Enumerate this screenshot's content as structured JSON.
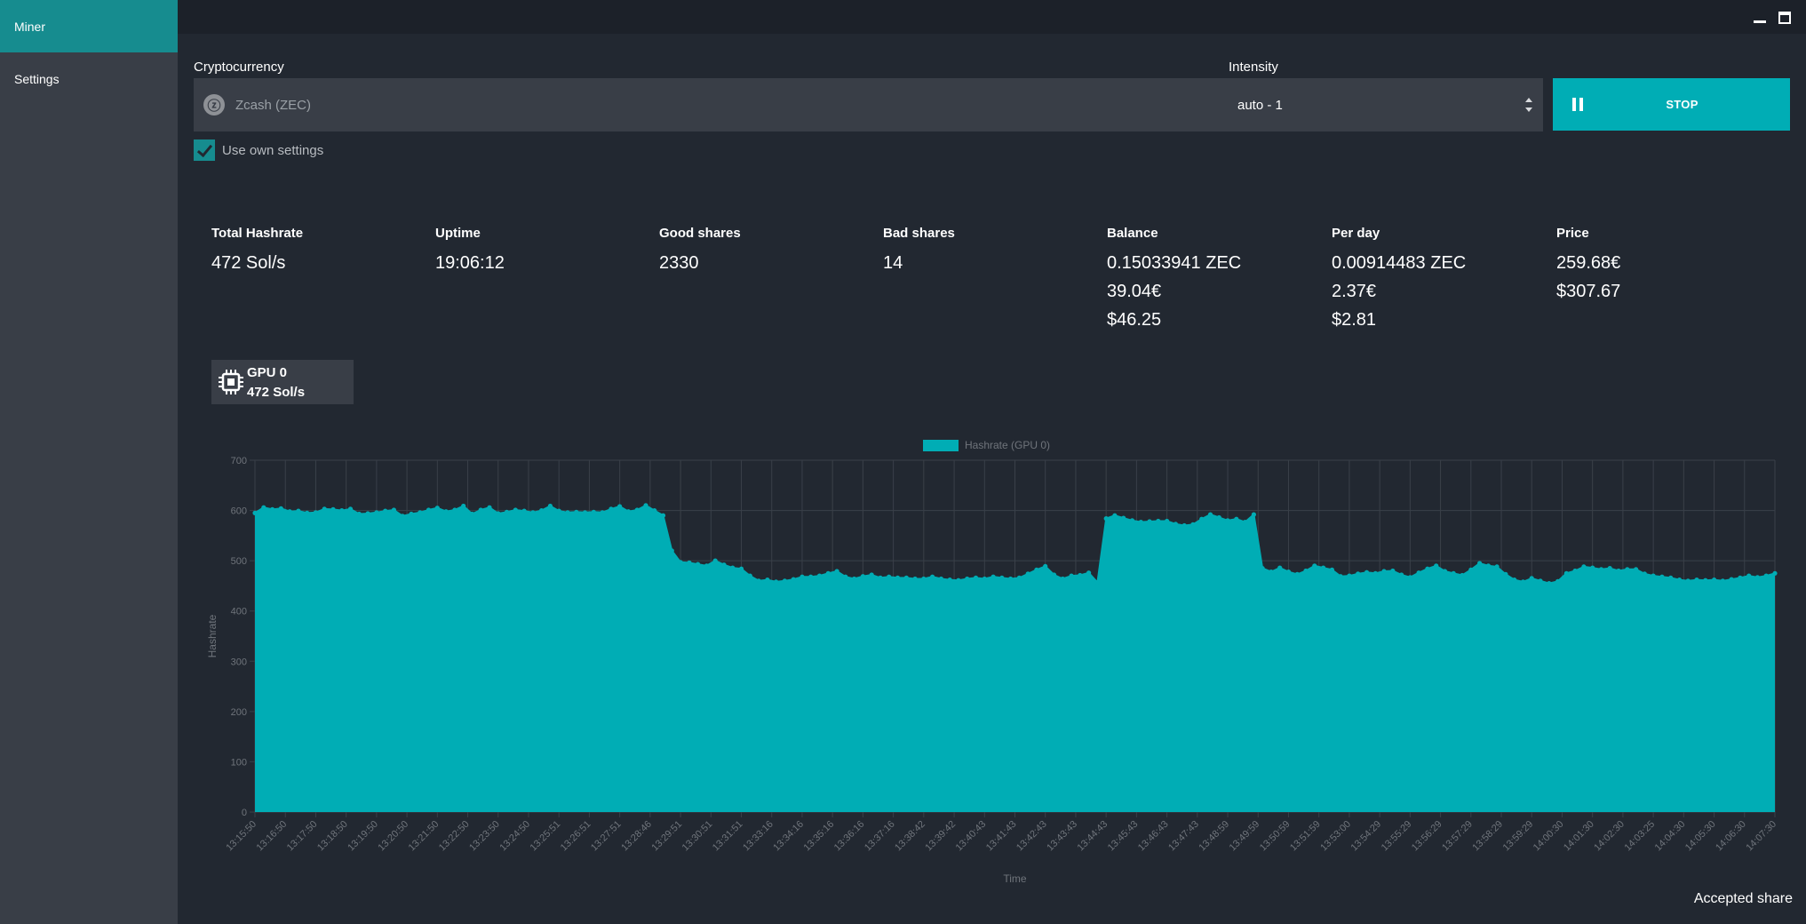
{
  "nav": {
    "items": [
      {
        "label": "Miner",
        "active": true
      },
      {
        "label": "Settings",
        "active": false
      }
    ]
  },
  "controls": {
    "crypto_label": "Cryptocurrency",
    "crypto_value": "Zcash (ZEC)",
    "crypto_icon": "zcash-coin-icon",
    "intensity_label": "Intensity",
    "intensity_value": "auto - 1",
    "stop_label": "STOP",
    "use_own_settings_label": "Use own settings",
    "use_own_settings_checked": true
  },
  "stats": [
    {
      "label": "Total Hashrate",
      "values": [
        "472 Sol/s"
      ]
    },
    {
      "label": "Uptime",
      "values": [
        "19:06:12"
      ]
    },
    {
      "label": "Good shares",
      "values": [
        "2330"
      ]
    },
    {
      "label": "Bad shares",
      "values": [
        "14"
      ]
    },
    {
      "label": "Balance",
      "values": [
        "0.15033941 ZEC",
        "39.04€",
        "$46.25"
      ]
    },
    {
      "label": "Per day",
      "values": [
        "0.00914483 ZEC",
        "2.37€",
        "$2.81"
      ]
    },
    {
      "label": "Price",
      "values": [
        "259.68€",
        "$307.67"
      ]
    }
  ],
  "gpu": {
    "name": "GPU 0",
    "hashrate": "472 Sol/s",
    "icon": "cpu-chip-icon"
  },
  "status_text": "Accepted share",
  "colors": {
    "accent": "#00adb5",
    "active_nav": "#168c8f",
    "background": "#222831",
    "panel": "#393e47"
  },
  "chart_data": {
    "type": "area",
    "legend": [
      "Hashrate (GPU 0)"
    ],
    "legend_position": "top-center",
    "xlabel": "Time",
    "ylabel": "Hashrate",
    "ylim": [
      0,
      700
    ],
    "yticks": [
      0,
      100,
      200,
      300,
      400,
      500,
      600,
      700
    ],
    "grid": true,
    "x_tick_labels": [
      "13:15:50",
      "13:16:50",
      "13:17:50",
      "13:18:50",
      "13:19:50",
      "13:20:50",
      "13:21:50",
      "13:22:50",
      "13:23:50",
      "13:24:50",
      "13:25:51",
      "13:26:51",
      "13:27:51",
      "13:28:46",
      "13:29:51",
      "13:30:51",
      "13:31:51",
      "13:33:16",
      "13:34:16",
      "13:35:16",
      "13:36:16",
      "13:37:16",
      "13:38:42",
      "13:39:42",
      "13:40:43",
      "13:41:43",
      "13:42:43",
      "13:43:43",
      "13:44:43",
      "13:45:43",
      "13:46:43",
      "13:47:43",
      "13:48:59",
      "13:49:59",
      "13:50:59",
      "13:51:59",
      "13:53:00",
      "13:54:29",
      "13:55:29",
      "13:56:29",
      "13:57:29",
      "13:58:29",
      "13:59:29",
      "14:00:30",
      "14:01:30",
      "14:02:30",
      "14:03:25",
      "14:04:30",
      "14:05:30",
      "14:06:30",
      "14:07:30"
    ],
    "series": [
      {
        "name": "Hashrate (GPU 0)",
        "color": "#00adb5",
        "values": [
          595,
          606,
          602,
          604,
          598,
          599,
          595,
          596,
          603,
          602,
          600,
          603,
          593,
          594,
          596,
          599,
          601,
          589,
          593,
          596,
          601,
          605,
          598,
          601,
          609,
          593,
          601,
          606,
          594,
          597,
          601,
          599,
          596,
          600,
          609,
          599,
          596,
          597,
          596,
          597,
          596,
          603,
          608,
          598,
          601,
          610,
          600,
          590,
          520,
          497,
          496,
          493,
          490,
          500,
          492,
          486,
          484,
          470,
          460,
          462,
          458,
          460,
          463,
          468,
          468,
          470,
          475,
          479,
          468,
          464,
          469,
          472,
          466,
          468,
          466,
          466,
          464,
          464,
          468,
          464,
          462,
          461,
          464,
          466,
          464,
          468,
          466,
          464,
          466,
          474,
          482,
          489,
          472,
          464,
          470,
          471,
          476,
          457,
          584,
          590,
          585,
          580,
          577,
          578,
          579,
          579,
          573,
          570,
          572,
          583,
          592,
          586,
          580,
          583,
          577,
          592,
          485,
          478,
          486,
          478,
          473,
          480,
          490,
          486,
          482,
          469,
          470,
          474,
          477,
          475,
          479,
          480,
          472,
          467,
          476,
          484,
          490,
          479,
          475,
          471,
          482,
          495,
          490,
          488,
          473,
          462,
          458,
          465,
          460,
          455,
          459,
          475,
          480,
          488,
          486,
          483,
          485,
          480,
          483,
          483,
          474,
          470,
          468,
          466,
          462,
          460,
          462,
          461,
          462,
          460,
          463,
          466,
          470,
          467,
          470,
          475
        ]
      }
    ]
  }
}
